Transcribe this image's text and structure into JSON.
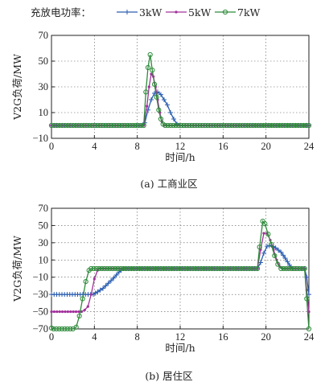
{
  "legend": {
    "title": "充放电功率：",
    "entries": [
      {
        "name": "3kW",
        "color": "#2a5db0",
        "marker": "plus"
      },
      {
        "name": "5kW",
        "color": "#a0309a",
        "marker": "dot"
      },
      {
        "name": "7kW",
        "color": "#2e8b3a",
        "marker": "circle"
      }
    ]
  },
  "chart_data": [
    {
      "type": "line",
      "caption": "(a) 工商业区",
      "xlabel": "时间/h",
      "ylabel": "V2G负荷/MW",
      "xlim": [
        0,
        24
      ],
      "ylim": [
        -10,
        70
      ],
      "xticks": [
        0,
        4,
        8,
        12,
        16,
        20,
        24
      ],
      "yticks": [
        -10,
        10,
        30,
        50,
        70
      ],
      "grid": true,
      "series": [
        {
          "name": "3kW",
          "points": [
            [
              0,
              0
            ],
            [
              8.4,
              0
            ],
            [
              8.7,
              2
            ],
            [
              9.0,
              12
            ],
            [
              9.3,
              20
            ],
            [
              9.6,
              25
            ],
            [
              9.9,
              26
            ],
            [
              10.2,
              24
            ],
            [
              10.5,
              20
            ],
            [
              10.8,
              16
            ],
            [
              11.1,
              10
            ],
            [
              11.4,
              5
            ],
            [
              11.7,
              1
            ],
            [
              12.0,
              0
            ],
            [
              24,
              0
            ]
          ]
        },
        {
          "name": "5kW",
          "points": [
            [
              0,
              0
            ],
            [
              8.6,
              0
            ],
            [
              8.9,
              15
            ],
            [
              9.1,
              30
            ],
            [
              9.3,
              40
            ],
            [
              9.5,
              38
            ],
            [
              9.7,
              30
            ],
            [
              9.9,
              20
            ],
            [
              10.1,
              10
            ],
            [
              10.3,
              3
            ],
            [
              10.5,
              0
            ],
            [
              24,
              0
            ]
          ]
        },
        {
          "name": "7kW",
          "points": [
            [
              0,
              0
            ],
            [
              8.6,
              0
            ],
            [
              8.8,
              26
            ],
            [
              9.0,
              45
            ],
            [
              9.2,
              55
            ],
            [
              9.4,
              43
            ],
            [
              9.6,
              32
            ],
            [
              9.8,
              22
            ],
            [
              10.0,
              12
            ],
            [
              10.2,
              5
            ],
            [
              10.4,
              1
            ],
            [
              10.6,
              0
            ],
            [
              24,
              0
            ]
          ]
        }
      ]
    },
    {
      "type": "line",
      "caption": "(b) 居住区",
      "xlabel": "时间/h",
      "ylabel": "V2G负荷/MW",
      "xlim": [
        0,
        24
      ],
      "ylim": [
        -70,
        70
      ],
      "xticks": [
        0,
        4,
        8,
        12,
        16,
        20,
        24
      ],
      "yticks": [
        -70,
        -50,
        -30,
        -10,
        10,
        30,
        50,
        70
      ],
      "grid": true,
      "series": [
        {
          "name": "3kW",
          "points": [
            [
              0,
              -30
            ],
            [
              3.9,
              -30
            ],
            [
              4.3,
              -27
            ],
            [
              4.8,
              -23
            ],
            [
              5.3,
              -17
            ],
            [
              5.8,
              -11
            ],
            [
              6.3,
              -4
            ],
            [
              6.7,
              0
            ],
            [
              19.2,
              0
            ],
            [
              19.5,
              7
            ],
            [
              19.8,
              18
            ],
            [
              20.1,
              26
            ],
            [
              20.5,
              27
            ],
            [
              20.9,
              24
            ],
            [
              21.4,
              19
            ],
            [
              21.8,
              12
            ],
            [
              22.2,
              4
            ],
            [
              22.5,
              0
            ],
            [
              23.6,
              0
            ],
            [
              23.8,
              -10
            ],
            [
              24,
              -30
            ]
          ]
        },
        {
          "name": "5kW",
          "points": [
            [
              0,
              -50
            ],
            [
              2.8,
              -50
            ],
            [
              3.1,
              -48
            ],
            [
              3.4,
              -44
            ],
            [
              3.7,
              -30
            ],
            [
              4.0,
              -12
            ],
            [
              4.3,
              -2
            ],
            [
              4.5,
              0
            ],
            [
              19.2,
              0
            ],
            [
              19.5,
              22
            ],
            [
              19.8,
              41
            ],
            [
              20.1,
              41
            ],
            [
              20.4,
              33
            ],
            [
              20.7,
              22
            ],
            [
              21.0,
              10
            ],
            [
              21.3,
              2
            ],
            [
              21.6,
              0
            ],
            [
              23.6,
              0
            ],
            [
              23.8,
              -25
            ],
            [
              24,
              -50
            ]
          ]
        },
        {
          "name": "7kW",
          "points": [
            [
              0,
              -69
            ],
            [
              0.2,
              -70
            ],
            [
              2.0,
              -70
            ],
            [
              2.3,
              -68
            ],
            [
              2.6,
              -55
            ],
            [
              2.9,
              -35
            ],
            [
              3.2,
              -15
            ],
            [
              3.5,
              -2
            ],
            [
              3.7,
              0
            ],
            [
              19.2,
              0
            ],
            [
              19.4,
              25
            ],
            [
              19.7,
              55
            ],
            [
              19.9,
              52
            ],
            [
              20.2,
              40
            ],
            [
              20.5,
              28
            ],
            [
              20.8,
              15
            ],
            [
              21.1,
              5
            ],
            [
              21.4,
              0
            ],
            [
              23.6,
              0
            ],
            [
              23.8,
              -35
            ],
            [
              24,
              -70
            ]
          ]
        }
      ]
    }
  ]
}
